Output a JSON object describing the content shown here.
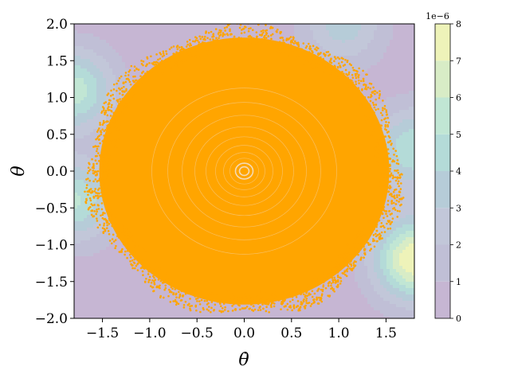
{
  "chart_data": {
    "type": "scatter",
    "title": "",
    "xlabel": "θ̇",
    "ylabel": "θ",
    "xlim": [
      -1.8,
      1.8
    ],
    "ylim": [
      -2.0,
      2.0
    ],
    "x_ticks": [
      -1.5,
      -1.0,
      -0.5,
      0.0,
      0.5,
      1.0,
      1.5
    ],
    "x_tick_labels": [
      "−1.5",
      "−1.0",
      "−0.5",
      "0.0",
      "0.5",
      "1.0",
      "1.5"
    ],
    "y_ticks": [
      2.0,
      1.5,
      1.0,
      0.5,
      0.0,
      -0.5,
      -1.0,
      -1.5,
      -2.0
    ],
    "y_tick_labels": [
      "2.0",
      "1.5",
      "1.0",
      "0.5",
      "0.0",
      "−0.5",
      "−1.0",
      "−1.5",
      "−2.0"
    ],
    "grid": false,
    "background": {
      "type": "contourf",
      "levels": [
        0,
        1,
        2,
        3,
        4,
        5,
        6,
        7,
        8
      ],
      "colormap": [
        "#c6b6d3",
        "#c0bfd6",
        "#c2c7d9",
        "#b6ccd8",
        "#b4dbd8",
        "#c1e6d4",
        "#d8ecc6",
        "#eef3b9",
        "#f5f6b2"
      ],
      "peaks": [
        {
          "x": -1.8,
          "y": 1.1,
          "value": 5.2
        },
        {
          "x": -1.8,
          "y": -0.4,
          "value": 4.8
        },
        {
          "x": 1.8,
          "y": -1.2,
          "value": 7.6
        },
        {
          "x": 1.8,
          "y": 0.3,
          "value": 4.6
        },
        {
          "x": 1.05,
          "y": 2.0,
          "value": 3.2
        }
      ]
    },
    "scatter": {
      "color": "#ffa500",
      "center": [
        0.0,
        0.0
      ],
      "outer_radius_x": 1.65,
      "outer_radius_y": 1.95,
      "description": "dense orange quasi-periodic orbit filling a disk, with faint concentric rings near the center"
    },
    "colorbar": {
      "ticks": [
        0,
        1,
        2,
        3,
        4,
        5,
        6,
        7,
        8
      ],
      "tick_labels": [
        "0",
        "1",
        "2",
        "3",
        "4",
        "5",
        "6",
        "7",
        "8"
      ],
      "offset_label": "1e−6"
    }
  }
}
